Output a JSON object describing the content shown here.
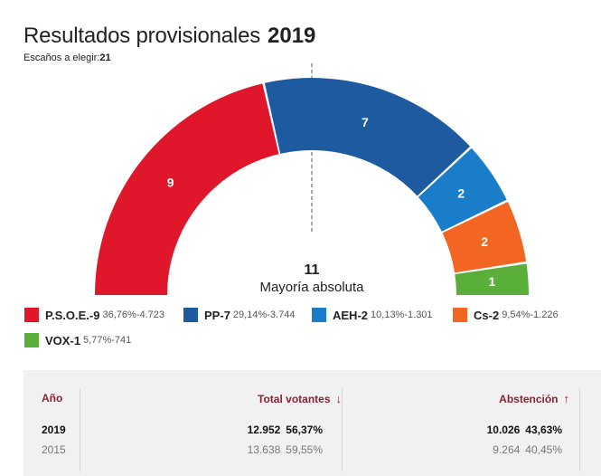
{
  "header": {
    "title": "Resultados provisionales",
    "year": "2019",
    "seats_label": "Escaños a elegir:",
    "seats_value": "21"
  },
  "chart_data": {
    "type": "hemicycle",
    "total_seats": 21,
    "majority": {
      "value": "11",
      "label": "Mayoría absoluta"
    },
    "parties": [
      {
        "name": "P.S.O.E.",
        "seats": 9,
        "seats_label": "9",
        "percent": "36,76%",
        "votes": "4.723",
        "color": "#e0172b"
      },
      {
        "name": "PP",
        "seats": 7,
        "seats_label": "7",
        "percent": "29,14%",
        "votes": "3.744",
        "color": "#1e5aa0"
      },
      {
        "name": "AEH",
        "seats": 2,
        "seats_label": "2",
        "percent": "10,13%",
        "votes": "1.301",
        "color": "#1a7dc9"
      },
      {
        "name": "Cs",
        "seats": 2,
        "seats_label": "2",
        "percent": "9,54%",
        "votes": "1.226",
        "color": "#f26522"
      },
      {
        "name": "VOX",
        "seats": 1,
        "seats_label": "1",
        "percent": "5,77%",
        "votes": "741",
        "color": "#5aae3a"
      }
    ]
  },
  "table": {
    "headers": {
      "year": "Año",
      "voters": "Total votantes",
      "abstention": "Abstención"
    },
    "rows": [
      {
        "year": "2019",
        "voters": "12.952",
        "voters_pct": "56,37%",
        "abstention": "10.026",
        "abstention_pct": "43,63%"
      },
      {
        "year": "2015",
        "voters": "13.638",
        "voters_pct": "59,55%",
        "abstention": "9.264",
        "abstention_pct": "40,45%"
      }
    ],
    "arrow_down": "↓",
    "arrow_up": "↑"
  }
}
